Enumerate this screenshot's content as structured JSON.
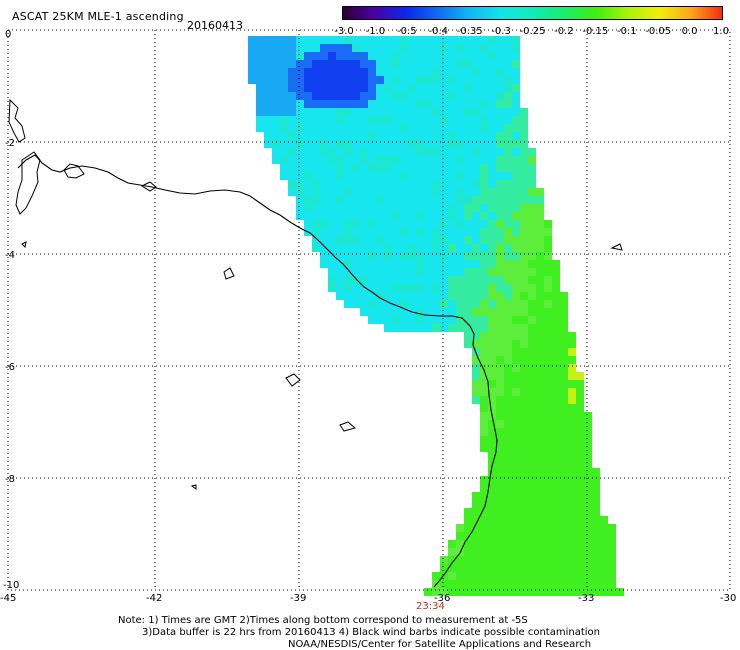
{
  "header": {
    "title": "ASCAT 25KM MLE-1 ascending",
    "date": "20160413"
  },
  "colorbar": {
    "labels": [
      "-3.0",
      "-1.0",
      "-0.5",
      "-0.4",
      "-0.35",
      "-0.3",
      "-0.25",
      "-0.2",
      "-0.15",
      "-0.1",
      "-0.05",
      "0.0",
      "1.0"
    ],
    "colors": [
      "#2b0030",
      "#4a00a8",
      "#0a28e8",
      "#0f6cf2",
      "#12b6f5",
      "#11e6e6",
      "#10ecb8",
      "#18ee6a",
      "#3ef00e",
      "#a8f20a",
      "#f0f00a",
      "#fca81a",
      "#f03010"
    ]
  },
  "map": {
    "y_ticks": [
      "0",
      "-2",
      "-4",
      "-6",
      "-8",
      "-10"
    ],
    "x_ticks": [
      "-45",
      "-42",
      "-39",
      "-36",
      "-33",
      "-30"
    ],
    "time_label": "23:34",
    "time_color": "#c0301a",
    "lon_range": [
      -45,
      -30
    ],
    "lat_range": [
      -10,
      0
    ]
  },
  "notes": {
    "line1": "Note: 1) Times are GMT 2)Times along bottom correspond to measurement at -5S",
    "line2": "3)Data buffer is 22 hrs from 20160413 4) Black wind barbs indicate possible contamination",
    "line3": "NOAA/NESDIS/Center for Satellite Applications and Research"
  }
}
